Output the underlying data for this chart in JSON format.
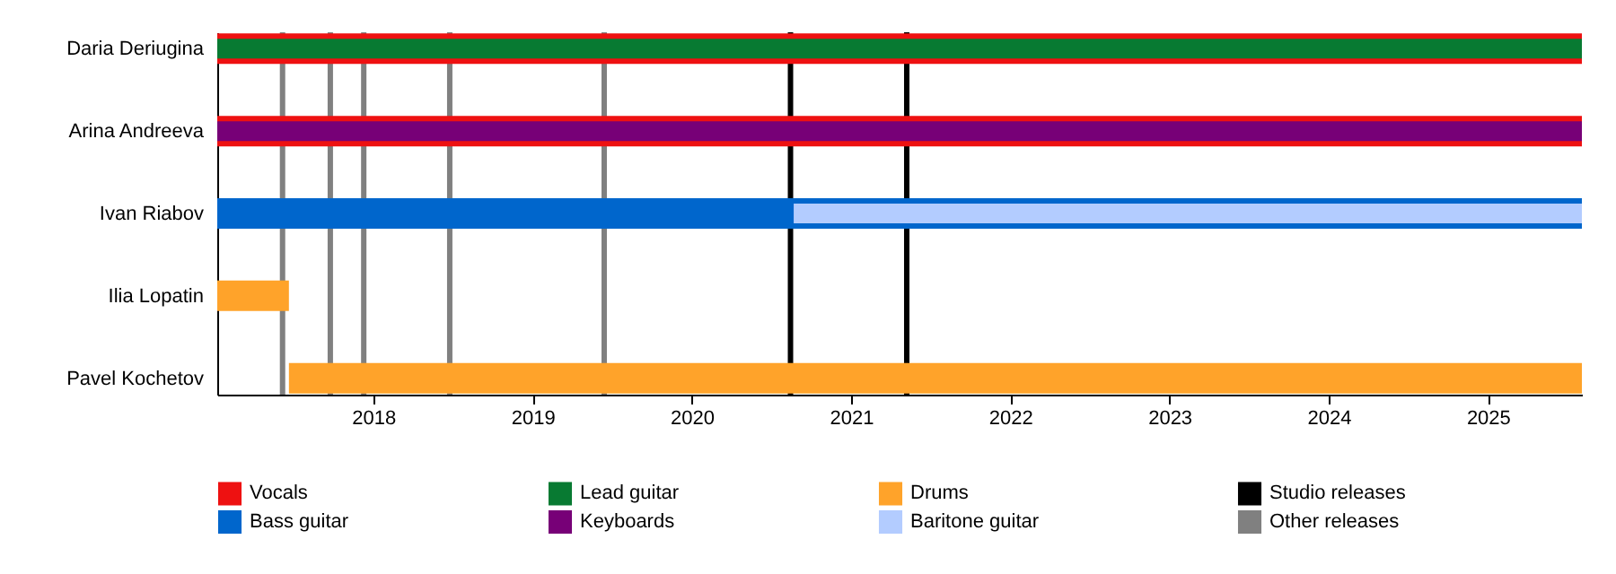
{
  "chart_data": {
    "type": "bar",
    "orientation": "horizontal",
    "categories": [
      "Daria Deriugina",
      "Arina Andreeva",
      "Ivan Riabov",
      "Ilia Lopatin",
      "Pavel Kochetov"
    ],
    "series": [
      {
        "name": "Vocals",
        "color": "#ee1111",
        "base": [
          2017.02,
          2017.02,
          null,
          null,
          null
        ],
        "values": [
          8.57,
          8.57,
          null,
          null,
          null
        ]
      },
      {
        "name": "Bass guitar",
        "color": "#0066cc",
        "base": [
          null,
          null,
          2017.02,
          null,
          null
        ],
        "values": [
          null,
          null,
          8.57,
          null,
          null
        ]
      },
      {
        "name": "Lead guitar",
        "color": "#087a32",
        "base": [
          2017.02,
          null,
          null,
          null,
          null
        ],
        "values": [
          8.57,
          null,
          null,
          null,
          null
        ]
      },
      {
        "name": "Keyboards",
        "color": "#770077",
        "base": [
          null,
          2017.02,
          null,
          null,
          null
        ],
        "values": [
          null,
          8.57,
          null,
          null,
          null
        ]
      },
      {
        "name": "Drums",
        "color": "#ffa32a",
        "base": [
          null,
          null,
          null,
          2017.02,
          2017.47
        ],
        "values": [
          null,
          null,
          null,
          0.45,
          8.12
        ]
      },
      {
        "name": "Baritone guitar",
        "color": "#b3ccff",
        "base": [
          null,
          null,
          2020.64,
          null,
          null
        ],
        "values": [
          null,
          null,
          4.95,
          null,
          null
        ]
      }
    ],
    "ref_lines": [
      {
        "axis": "x",
        "value": 2020.62,
        "label": "Studio releases",
        "color": "#000000"
      },
      {
        "axis": "x",
        "value": 2021.35,
        "color": "#000000"
      },
      {
        "axis": "x",
        "value": 2017.43,
        "label": "Other releases",
        "color": "#808080"
      },
      {
        "axis": "x",
        "value": 2017.73,
        "color": "#808080"
      },
      {
        "axis": "x",
        "value": 2017.94,
        "color": "#808080"
      },
      {
        "axis": "x",
        "value": 2018.48,
        "color": "#808080"
      },
      {
        "axis": "x",
        "value": 2019.45,
        "color": "#808080"
      }
    ],
    "xlim": [
      2017.02,
      2025.59
    ],
    "xticks": [
      2018,
      2019,
      2020,
      2021,
      2022,
      2023,
      2024,
      2025
    ],
    "grid": false,
    "legend": "bottom"
  }
}
